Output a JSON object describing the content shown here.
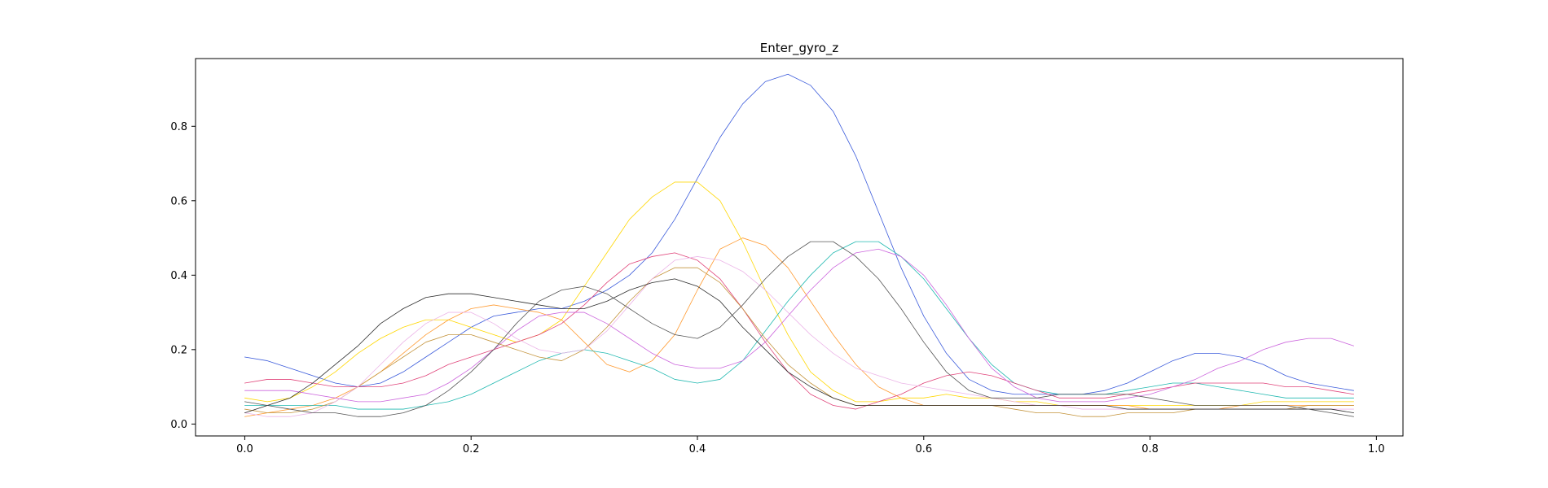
{
  "chart_data": {
    "type": "line",
    "title": "Enter_gyro_z",
    "xlabel": "",
    "ylabel": "",
    "xlim": [
      -0.0435,
      1.0235
    ],
    "ylim": [
      -0.032,
      0.982
    ],
    "xticks": [
      "0.0",
      "0.2",
      "0.4",
      "0.6",
      "0.8",
      "1.0"
    ],
    "yticks": [
      "0.0",
      "0.2",
      "0.4",
      "0.6",
      "0.8"
    ],
    "grid": false,
    "x": [
      0.0,
      0.02,
      0.04,
      0.06,
      0.08,
      0.1,
      0.12,
      0.14,
      0.16,
      0.18,
      0.2,
      0.22,
      0.24,
      0.26,
      0.28,
      0.3,
      0.32,
      0.34,
      0.36,
      0.38,
      0.4,
      0.42,
      0.44,
      0.46,
      0.48,
      0.5,
      0.52,
      0.54,
      0.56,
      0.58,
      0.6,
      0.62,
      0.64,
      0.66,
      0.68,
      0.7,
      0.72,
      0.74,
      0.76,
      0.78,
      0.8,
      0.82,
      0.84,
      0.86,
      0.88,
      0.9,
      0.92,
      0.94,
      0.96,
      0.98
    ],
    "series": [
      {
        "color": "#3b5bdb",
        "values": [
          0.18,
          0.17,
          0.15,
          0.13,
          0.11,
          0.1,
          0.11,
          0.14,
          0.18,
          0.22,
          0.26,
          0.29,
          0.3,
          0.31,
          0.31,
          0.33,
          0.36,
          0.4,
          0.46,
          0.55,
          0.66,
          0.77,
          0.86,
          0.92,
          0.94,
          0.91,
          0.84,
          0.72,
          0.57,
          0.42,
          0.29,
          0.19,
          0.12,
          0.09,
          0.08,
          0.08,
          0.08,
          0.08,
          0.09,
          0.11,
          0.14,
          0.17,
          0.19,
          0.19,
          0.18,
          0.16,
          0.13,
          0.11,
          0.1,
          0.09
        ]
      },
      {
        "color": "#ffd700",
        "values": [
          0.07,
          0.06,
          0.07,
          0.1,
          0.14,
          0.19,
          0.23,
          0.26,
          0.28,
          0.28,
          0.26,
          0.24,
          0.22,
          0.24,
          0.28,
          0.37,
          0.46,
          0.55,
          0.61,
          0.65,
          0.65,
          0.6,
          0.49,
          0.36,
          0.24,
          0.14,
          0.09,
          0.06,
          0.06,
          0.07,
          0.07,
          0.08,
          0.07,
          0.07,
          0.06,
          0.06,
          0.05,
          0.05,
          0.05,
          0.05,
          0.05,
          0.05,
          0.05,
          0.05,
          0.05,
          0.06,
          0.06,
          0.06,
          0.06,
          0.06
        ]
      },
      {
        "color": "#ff9a30",
        "values": [
          0.02,
          0.03,
          0.04,
          0.05,
          0.07,
          0.1,
          0.14,
          0.19,
          0.24,
          0.28,
          0.31,
          0.32,
          0.31,
          0.3,
          0.28,
          0.22,
          0.16,
          0.14,
          0.17,
          0.24,
          0.36,
          0.47,
          0.5,
          0.48,
          0.42,
          0.33,
          0.24,
          0.16,
          0.1,
          0.07,
          0.05,
          0.05,
          0.05,
          0.05,
          0.05,
          0.05,
          0.05,
          0.05,
          0.05,
          0.05,
          0.04,
          0.04,
          0.04,
          0.04,
          0.05,
          0.05,
          0.05,
          0.05,
          0.05,
          0.05
        ]
      },
      {
        "color": "#1fb8b0",
        "values": [
          0.05,
          0.05,
          0.05,
          0.05,
          0.05,
          0.04,
          0.04,
          0.04,
          0.05,
          0.06,
          0.08,
          0.11,
          0.14,
          0.17,
          0.19,
          0.2,
          0.19,
          0.17,
          0.15,
          0.12,
          0.11,
          0.12,
          0.17,
          0.25,
          0.33,
          0.4,
          0.46,
          0.49,
          0.49,
          0.45,
          0.39,
          0.31,
          0.23,
          0.16,
          0.11,
          0.09,
          0.08,
          0.08,
          0.08,
          0.09,
          0.1,
          0.11,
          0.11,
          0.1,
          0.09,
          0.08,
          0.07,
          0.07,
          0.07,
          0.07
        ]
      },
      {
        "color": "#e0447a",
        "values": [
          0.11,
          0.12,
          0.12,
          0.11,
          0.1,
          0.1,
          0.1,
          0.11,
          0.13,
          0.16,
          0.18,
          0.2,
          0.22,
          0.24,
          0.27,
          0.32,
          0.38,
          0.43,
          0.45,
          0.46,
          0.44,
          0.39,
          0.31,
          0.22,
          0.14,
          0.08,
          0.05,
          0.04,
          0.06,
          0.08,
          0.11,
          0.13,
          0.14,
          0.13,
          0.11,
          0.09,
          0.07,
          0.07,
          0.07,
          0.08,
          0.09,
          0.1,
          0.11,
          0.11,
          0.11,
          0.11,
          0.1,
          0.1,
          0.09,
          0.08
        ]
      },
      {
        "color": "#cc66dd",
        "values": [
          0.09,
          0.09,
          0.09,
          0.08,
          0.07,
          0.06,
          0.06,
          0.07,
          0.08,
          0.11,
          0.15,
          0.2,
          0.25,
          0.29,
          0.3,
          0.3,
          0.27,
          0.23,
          0.19,
          0.16,
          0.15,
          0.15,
          0.17,
          0.22,
          0.29,
          0.36,
          0.42,
          0.46,
          0.47,
          0.45,
          0.4,
          0.32,
          0.23,
          0.15,
          0.1,
          0.07,
          0.06,
          0.06,
          0.06,
          0.07,
          0.08,
          0.1,
          0.12,
          0.15,
          0.17,
          0.2,
          0.22,
          0.23,
          0.23,
          0.21
        ]
      },
      {
        "color": "#c4943c",
        "values": [
          0.04,
          0.03,
          0.03,
          0.04,
          0.06,
          0.1,
          0.14,
          0.18,
          0.22,
          0.24,
          0.24,
          0.22,
          0.2,
          0.18,
          0.17,
          0.2,
          0.26,
          0.33,
          0.39,
          0.42,
          0.42,
          0.38,
          0.31,
          0.23,
          0.16,
          0.11,
          0.07,
          0.05,
          0.05,
          0.05,
          0.05,
          0.05,
          0.05,
          0.05,
          0.04,
          0.03,
          0.03,
          0.02,
          0.02,
          0.03,
          0.03,
          0.03,
          0.04,
          0.04,
          0.04,
          0.04,
          0.04,
          0.05,
          0.05,
          0.05
        ]
      },
      {
        "color": "#ecb5e8",
        "values": [
          0.03,
          0.02,
          0.02,
          0.03,
          0.06,
          0.1,
          0.16,
          0.22,
          0.27,
          0.3,
          0.3,
          0.27,
          0.23,
          0.2,
          0.19,
          0.2,
          0.25,
          0.32,
          0.39,
          0.44,
          0.45,
          0.44,
          0.41,
          0.36,
          0.3,
          0.24,
          0.19,
          0.15,
          0.13,
          0.11,
          0.1,
          0.09,
          0.08,
          0.07,
          0.06,
          0.05,
          0.05,
          0.04,
          0.04,
          0.04,
          0.04,
          0.04,
          0.04,
          0.04,
          0.04,
          0.04,
          0.04,
          0.04,
          0.04,
          0.04
        ]
      },
      {
        "color": "#2b2b2b",
        "values": [
          0.03,
          0.05,
          0.07,
          0.11,
          0.16,
          0.21,
          0.27,
          0.31,
          0.34,
          0.35,
          0.35,
          0.34,
          0.33,
          0.32,
          0.31,
          0.31,
          0.33,
          0.36,
          0.38,
          0.39,
          0.37,
          0.33,
          0.26,
          0.2,
          0.14,
          0.1,
          0.07,
          0.05,
          0.05,
          0.05,
          0.05,
          0.05,
          0.05,
          0.05,
          0.05,
          0.05,
          0.05,
          0.05,
          0.05,
          0.04,
          0.04,
          0.04,
          0.04,
          0.04,
          0.04,
          0.04,
          0.04,
          0.04,
          0.04,
          0.03
        ]
      },
      {
        "color": "#555555",
        "values": [
          0.06,
          0.05,
          0.04,
          0.03,
          0.03,
          0.02,
          0.02,
          0.03,
          0.05,
          0.09,
          0.14,
          0.2,
          0.27,
          0.33,
          0.36,
          0.37,
          0.35,
          0.31,
          0.27,
          0.24,
          0.23,
          0.26,
          0.32,
          0.39,
          0.45,
          0.49,
          0.49,
          0.45,
          0.39,
          0.31,
          0.22,
          0.14,
          0.09,
          0.07,
          0.07,
          0.07,
          0.08,
          0.08,
          0.08,
          0.08,
          0.07,
          0.06,
          0.05,
          0.05,
          0.05,
          0.05,
          0.05,
          0.04,
          0.03,
          0.02
        ]
      }
    ]
  }
}
